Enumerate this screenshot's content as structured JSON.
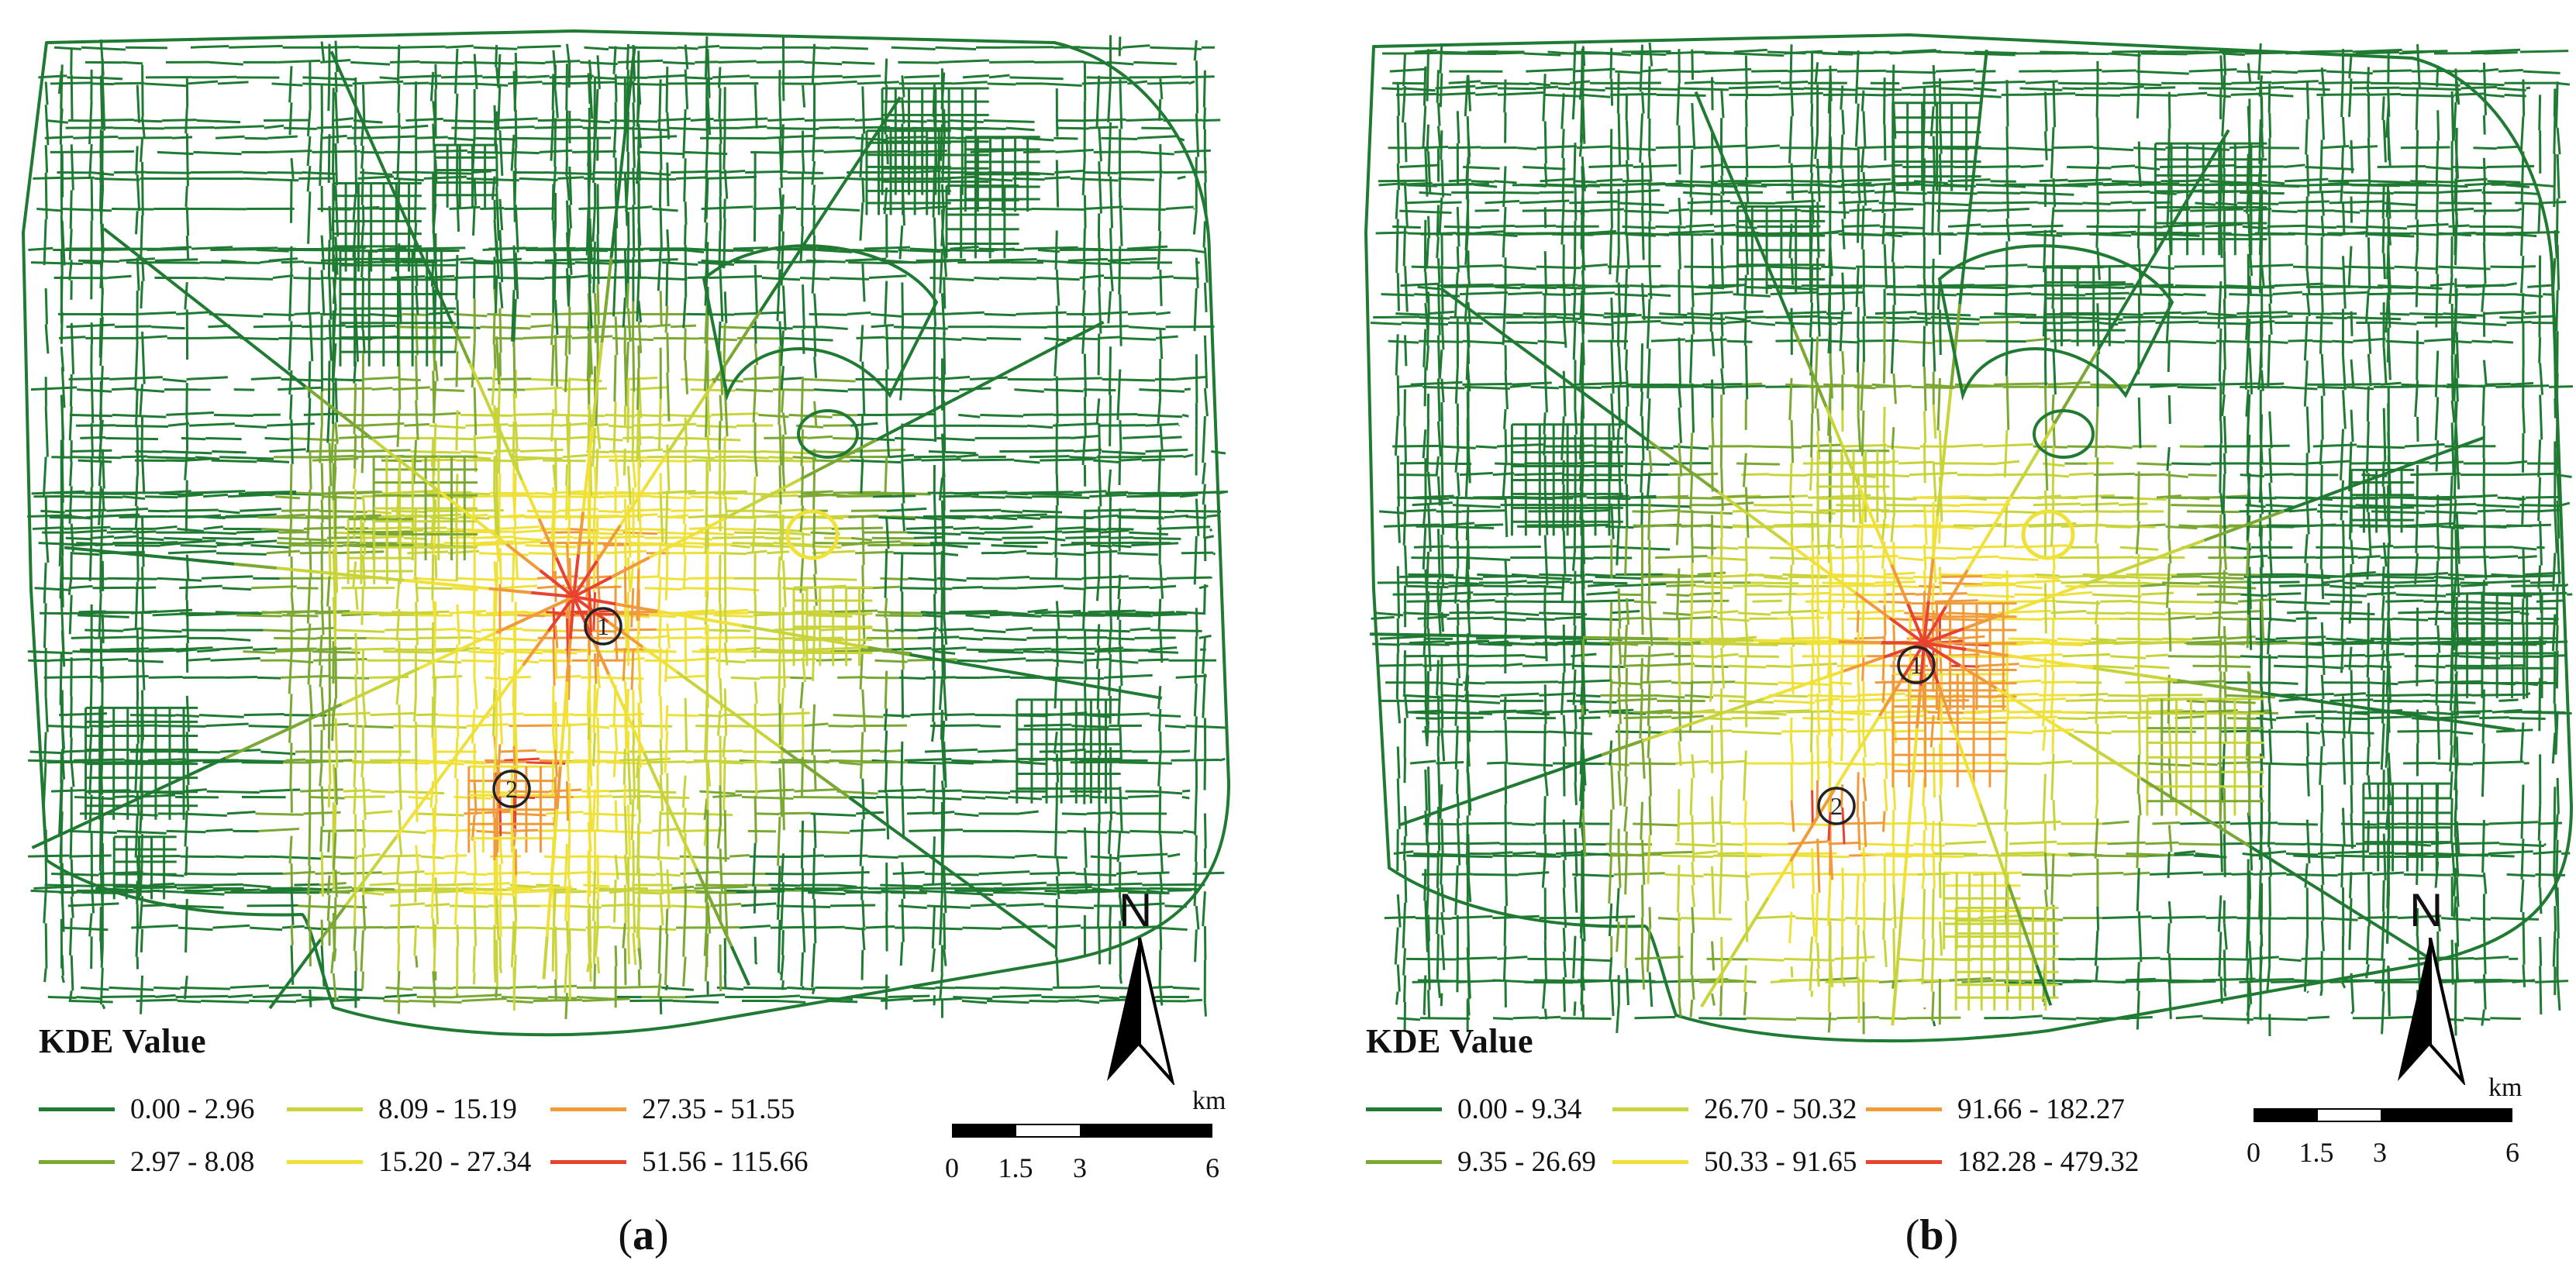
{
  "colors": {
    "c1": "#1f7a32",
    "c2": "#7aa832",
    "c3": "#c8d43a",
    "c4": "#f0e13a",
    "c5": "#f09a3a",
    "c6": "#e8432e"
  },
  "panels": [
    {
      "caption_open": "(",
      "caption_letter": "a",
      "caption_close": ")",
      "legend_title": "KDE Value",
      "legend": [
        {
          "label": "0.00 - 2.96",
          "color": "#1f7a32"
        },
        {
          "label": "2.97 - 8.08",
          "color": "#7aa832"
        },
        {
          "label": "8.09 - 15.19",
          "color": "#c8d43a"
        },
        {
          "label": "15.20 - 27.34",
          "color": "#f0e13a"
        },
        {
          "label": "27.35 - 51.55",
          "color": "#f09a3a"
        },
        {
          "label": "51.56 - 115.66",
          "color": "#e8432e"
        }
      ],
      "markers": [
        "1",
        "2"
      ],
      "north": "N",
      "scale_unit": "km",
      "scale_ticks": [
        "0",
        "1.5",
        "3",
        "6"
      ]
    },
    {
      "caption_open": "(",
      "caption_letter": "b",
      "caption_close": ")",
      "legend_title": "KDE Value",
      "legend": [
        {
          "label": "0.00 - 9.34",
          "color": "#1f7a32"
        },
        {
          "label": "9.35 - 26.69",
          "color": "#7aa832"
        },
        {
          "label": "26.70 - 50.32",
          "color": "#c8d43a"
        },
        {
          "label": "50.33 - 91.65",
          "color": "#f0e13a"
        },
        {
          "label": "91.66 - 182.27",
          "color": "#f09a3a"
        },
        {
          "label": "182.28 - 479.32",
          "color": "#e8432e"
        }
      ],
      "markers": [
        "1",
        "2"
      ],
      "north": "N",
      "scale_unit": "km",
      "scale_ticks": [
        "0",
        "1.5",
        "3",
        "6"
      ]
    }
  ]
}
